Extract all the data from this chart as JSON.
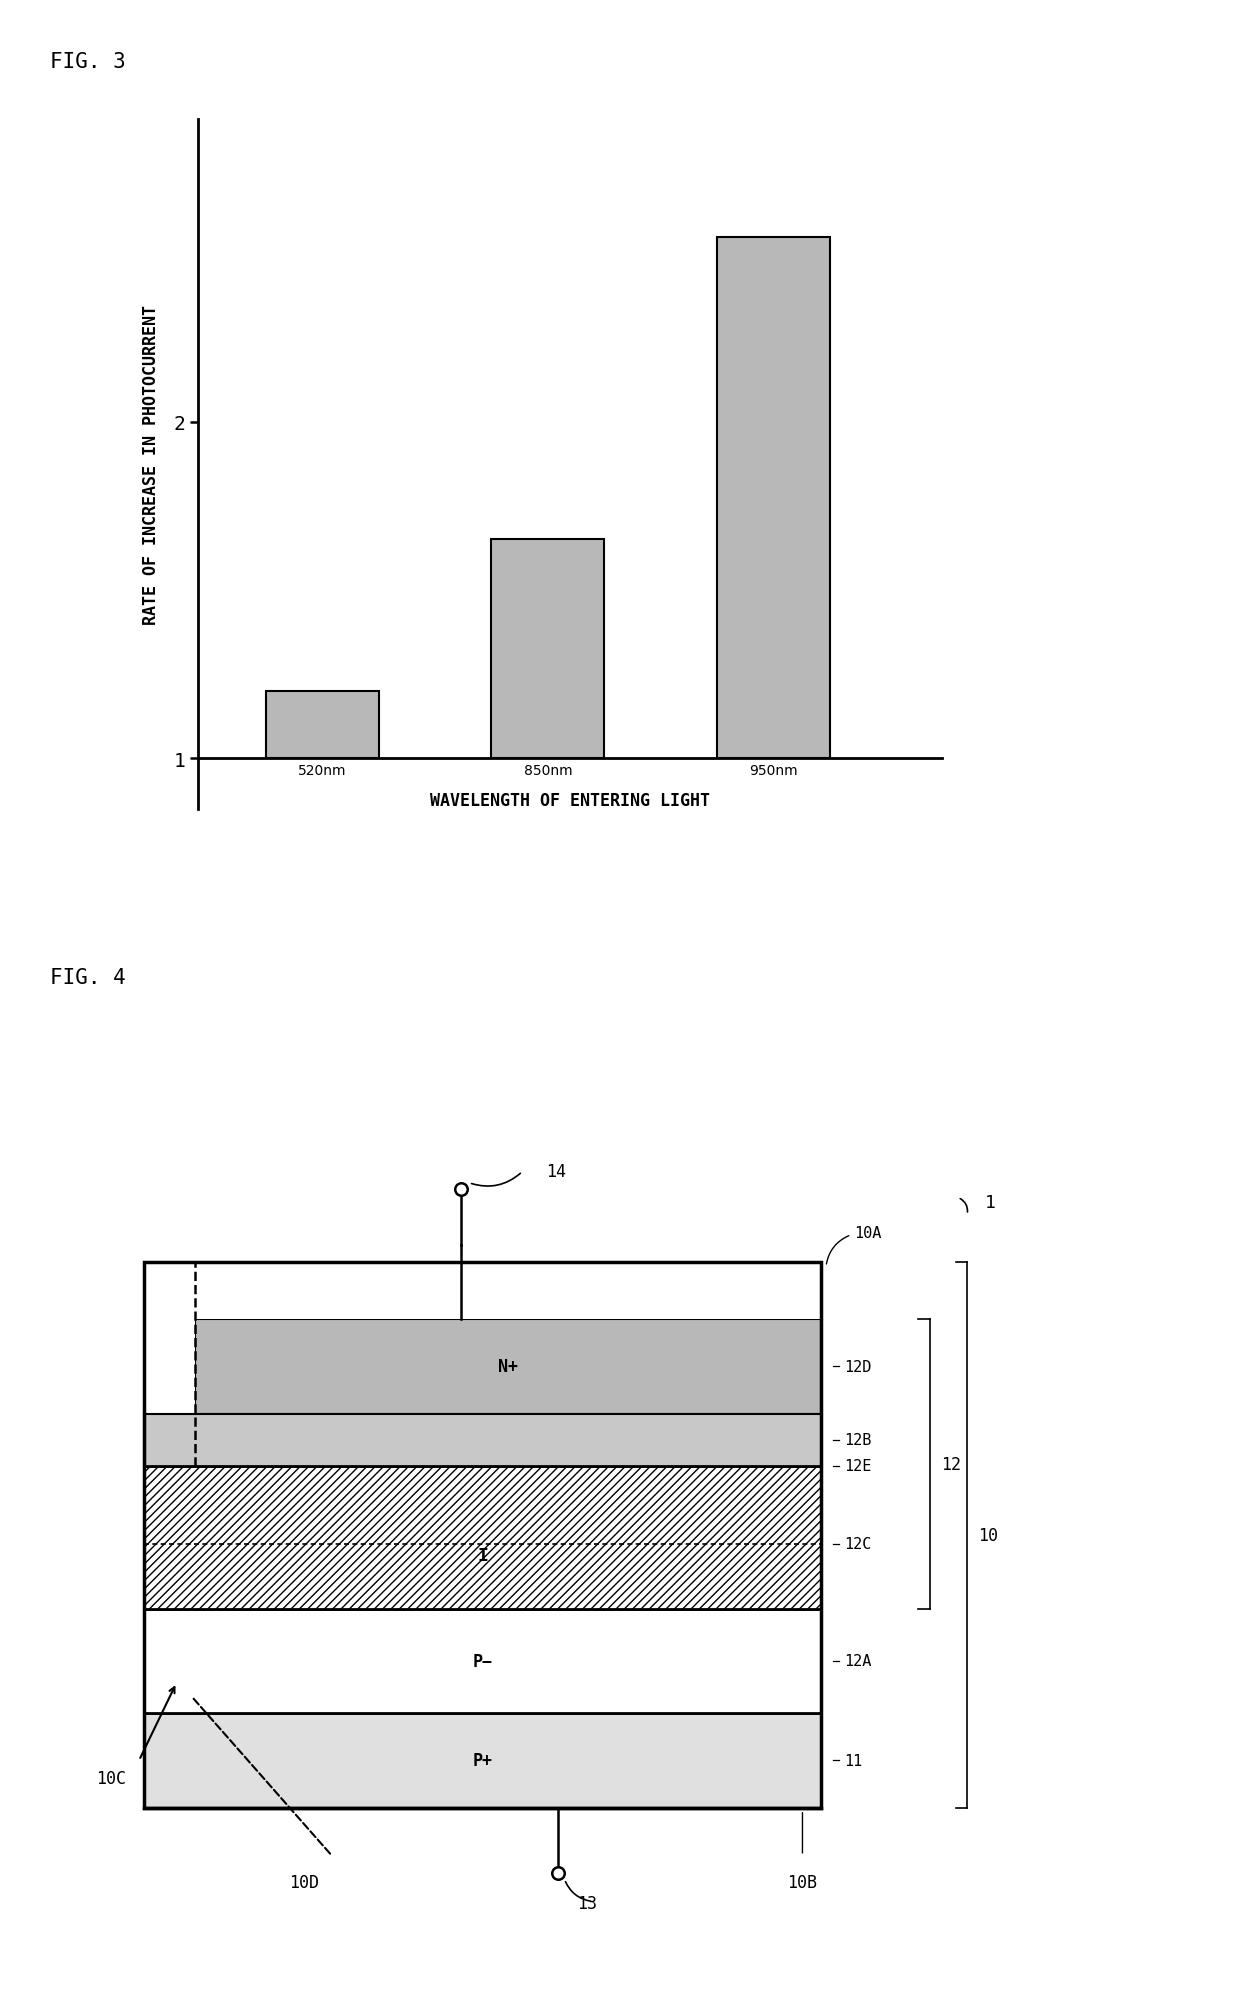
{
  "fig3_title": "FIG. 3",
  "fig4_title": "FIG. 4",
  "bar_categories": [
    "520nm",
    "850nm",
    "950nm"
  ],
  "bar_values": [
    1.2,
    1.65,
    2.55
  ],
  "bar_color": "#b8b8b8",
  "bar_edgecolor": "#000000",
  "ylabel": "RATE OF INCREASE IN PHOTOCURRENT",
  "xlabel": "WAVELENGTH OF ENTERING LIGHT",
  "yticks": [
    1,
    2
  ],
  "ylim": [
    0.85,
    2.9
  ],
  "background_color": "#ffffff",
  "fig_label_fontsize": 15,
  "axis_label_fontsize": 12,
  "tick_label_fontsize": 12,
  "diagram_label_fontsize": 11,
  "fig1_number": "1"
}
